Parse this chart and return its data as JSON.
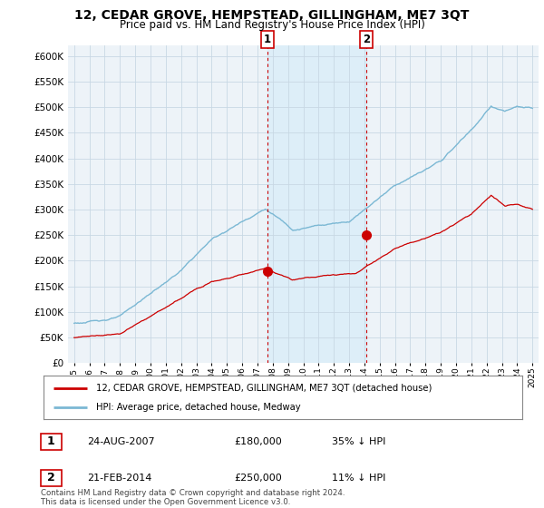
{
  "title": "12, CEDAR GROVE, HEMPSTEAD, GILLINGHAM, ME7 3QT",
  "subtitle": "Price paid vs. HM Land Registry's House Price Index (HPI)",
  "ylim": [
    0,
    620000
  ],
  "yticks": [
    0,
    50000,
    100000,
    150000,
    200000,
    250000,
    300000,
    350000,
    400000,
    450000,
    500000,
    550000,
    600000
  ],
  "hpi_color": "#7bb8d4",
  "price_color": "#cc0000",
  "marker1_year": 2007.65,
  "marker1_price": 180000,
  "marker2_year": 2014.13,
  "marker2_price": 250000,
  "legend_line1": "12, CEDAR GROVE, HEMPSTEAD, GILLINGHAM, ME7 3QT (detached house)",
  "legend_line2": "HPI: Average price, detached house, Medway",
  "annotation1_date": "24-AUG-2007",
  "annotation1_price": "£180,000",
  "annotation1_hpi": "35% ↓ HPI",
  "annotation2_date": "21-FEB-2014",
  "annotation2_price": "£250,000",
  "annotation2_hpi": "11% ↓ HPI",
  "footer": "Contains HM Land Registry data © Crown copyright and database right 2024.\nThis data is licensed under the Open Government Licence v3.0.",
  "shaded_color": "#ddeef8",
  "plot_bg_color": "#edf3f8",
  "grid_color": "#c8d8e4"
}
